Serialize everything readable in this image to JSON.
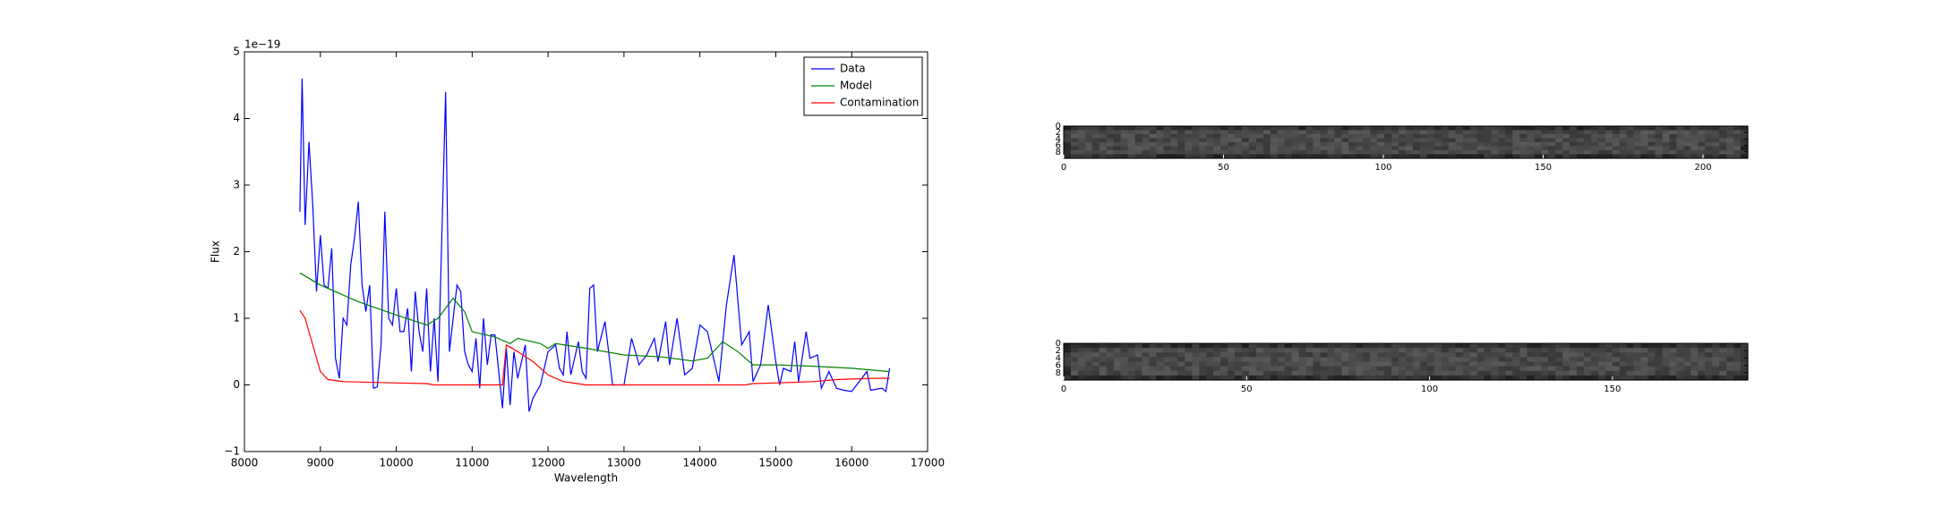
{
  "chart_data": [
    {
      "type": "line",
      "xlabel": "Wavelength",
      "ylabel": "Flux",
      "y_offset_label": "1e−19",
      "xlim": [
        8000,
        17000
      ],
      "xticks": [
        8000,
        9000,
        10000,
        11000,
        12000,
        13000,
        14000,
        15000,
        16000,
        17000
      ],
      "ylim": [
        -1,
        5
      ],
      "yticks": [
        {
          "value": -1,
          "label": "−1"
        },
        0,
        1,
        2,
        3,
        4,
        5
      ],
      "legend": "upper right",
      "series": [
        {
          "name": "Data",
          "color": "#0000ff",
          "x": [
            8730,
            8760,
            8800,
            8850,
            8900,
            8950,
            9000,
            9050,
            9100,
            9150,
            9200,
            9250,
            9300,
            9350,
            9400,
            9450,
            9500,
            9550,
            9600,
            9650,
            9700,
            9750,
            9800,
            9850,
            9900,
            9950,
            10000,
            10050,
            10100,
            10150,
            10200,
            10250,
            10300,
            10350,
            10400,
            10450,
            10500,
            10550,
            10650,
            10700,
            10750,
            10800,
            10850,
            10900,
            10950,
            11000,
            11050,
            11100,
            11150,
            11200,
            11250,
            11300,
            11350,
            11400,
            11450,
            11500,
            11550,
            11600,
            11700,
            11750,
            11800,
            11900,
            12000,
            12100,
            12150,
            12200,
            12250,
            12300,
            12400,
            12450,
            12500,
            12550,
            12600,
            12650,
            12750,
            12850,
            13000,
            13100,
            13200,
            13300,
            13400,
            13450,
            13550,
            13600,
            13700,
            13800,
            13900,
            14000,
            14100,
            14250,
            14350,
            14450,
            14550,
            14650,
            14700,
            14800,
            14900,
            15000,
            15050,
            15100,
            15200,
            15250,
            15300,
            15400,
            15450,
            15550,
            15600,
            15700,
            15800,
            15900,
            16000,
            16200,
            16250,
            16400,
            16450,
            16500
          ],
          "values": [
            2.6,
            4.6,
            2.4,
            3.65,
            2.7,
            1.4,
            2.25,
            1.5,
            1.45,
            2.05,
            0.4,
            0.1,
            1.0,
            0.9,
            1.8,
            2.2,
            2.75,
            1.5,
            1.1,
            1.5,
            -0.05,
            -0.03,
            0.6,
            2.6,
            1.0,
            0.9,
            1.45,
            0.8,
            0.8,
            1.15,
            0.2,
            1.4,
            0.8,
            0.5,
            1.45,
            0.2,
            1.0,
            0.05,
            4.4,
            0.5,
            1.0,
            1.5,
            1.4,
            0.5,
            0.3,
            0.2,
            0.7,
            -0.05,
            1.0,
            0.3,
            0.75,
            0.75,
            0.2,
            -0.35,
            0.55,
            -0.3,
            0.5,
            0.1,
            0.6,
            -0.4,
            -0.2,
            0.0,
            0.5,
            0.6,
            0.25,
            0.15,
            0.8,
            0.15,
            0.65,
            0.2,
            0.1,
            1.45,
            1.5,
            0.5,
            0.95,
            0.0,
            0.0,
            0.7,
            0.3,
            0.45,
            0.7,
            0.35,
            0.95,
            0.3,
            1.0,
            0.15,
            0.25,
            0.9,
            0.8,
            0.05,
            1.2,
            1.95,
            0.6,
            0.8,
            0.05,
            0.3,
            1.2,
            0.35,
            0.0,
            0.25,
            0.2,
            0.65,
            0.05,
            0.8,
            0.4,
            0.45,
            -0.05,
            0.2,
            -0.05,
            -0.08,
            -0.1,
            0.2,
            -0.08,
            -0.05,
            -0.1,
            0.25
          ]
        },
        {
          "name": "Model",
          "color": "#008000",
          "x": [
            8730,
            9000,
            9500,
            10000,
            10400,
            10550,
            10750,
            10900,
            11000,
            11300,
            11500,
            11600,
            11900,
            12000,
            12100,
            12500,
            13000,
            13500,
            13900,
            14100,
            14300,
            14500,
            14700,
            15000,
            15500,
            16000,
            16500
          ],
          "values": [
            1.68,
            1.5,
            1.25,
            1.05,
            0.9,
            1.0,
            1.3,
            1.1,
            0.8,
            0.72,
            0.62,
            0.7,
            0.62,
            0.55,
            0.62,
            0.55,
            0.45,
            0.42,
            0.36,
            0.4,
            0.65,
            0.5,
            0.3,
            0.3,
            0.28,
            0.25,
            0.2
          ]
        },
        {
          "name": "Contamination",
          "color": "#ff0000",
          "x": [
            8730,
            8800,
            8900,
            9000,
            9100,
            9300,
            10000,
            10400,
            10500,
            11400,
            11450,
            11600,
            11800,
            12000,
            12200,
            12500,
            13000,
            14000,
            14600,
            14700,
            15000,
            15500,
            15800,
            16300,
            16500
          ],
          "values": [
            1.12,
            1.0,
            0.6,
            0.2,
            0.08,
            0.05,
            0.03,
            0.02,
            0.0,
            0.0,
            0.6,
            0.5,
            0.35,
            0.15,
            0.05,
            0.0,
            0.0,
            0.0,
            0.0,
            0.02,
            0.03,
            0.05,
            0.08,
            0.1,
            0.1
          ]
        }
      ]
    },
    {
      "type": "image",
      "xlim": [
        0,
        214
      ],
      "xticks": [
        0,
        50,
        100,
        150,
        200
      ],
      "ylim": [
        10,
        0
      ],
      "yticks": [
        0,
        2,
        4,
        6,
        8
      ]
    },
    {
      "type": "image",
      "xlim": [
        0,
        187
      ],
      "xticks": [
        0,
        50,
        100,
        150
      ],
      "ylim": [
        10,
        0
      ],
      "yticks": [
        0,
        2,
        4,
        6,
        8
      ]
    }
  ]
}
